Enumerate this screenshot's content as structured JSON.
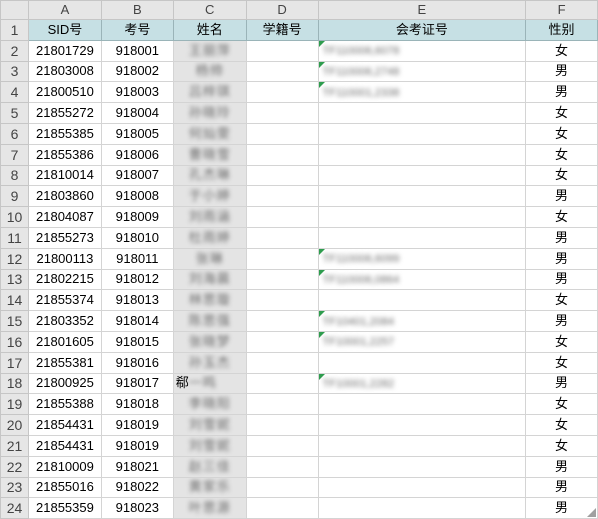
{
  "column_letters": [
    "A",
    "B",
    "C",
    "D",
    "E",
    "F"
  ],
  "headers": [
    "SID号",
    "考号",
    "姓名",
    "学籍号",
    "会考证号",
    "性别"
  ],
  "rows": [
    {
      "num": "2",
      "sid": "21801729",
      "exam": "918001",
      "name": "王丽萍",
      "xj": "",
      "hk": "TF110006,6078",
      "sex": "女"
    },
    {
      "num": "3",
      "sid": "21803008",
      "exam": "918002",
      "name": "杨帅",
      "xj": "",
      "hk": "TF110006,2748",
      "sex": "男"
    },
    {
      "num": "4",
      "sid": "21800510",
      "exam": "918003",
      "name": "吕梓琪",
      "xj": "",
      "hk": "TF110001,2338",
      "sex": "男"
    },
    {
      "num": "5",
      "sid": "21855272",
      "exam": "918004",
      "name": "孙晓玲",
      "xj": "",
      "hk": "",
      "sex": "女"
    },
    {
      "num": "6",
      "sid": "21855385",
      "exam": "918005",
      "name": "何灿雯",
      "xj": "",
      "hk": "",
      "sex": "女"
    },
    {
      "num": "7",
      "sid": "21855386",
      "exam": "918006",
      "name": "曹晓雪",
      "xj": "",
      "hk": "",
      "sex": "女"
    },
    {
      "num": "8",
      "sid": "21810014",
      "exam": "918007",
      "name": "孔杰琳",
      "xj": "",
      "hk": "",
      "sex": "女"
    },
    {
      "num": "9",
      "sid": "21803860",
      "exam": "918008",
      "name": "于小婷",
      "xj": "",
      "hk": "",
      "sex": "男"
    },
    {
      "num": "10",
      "sid": "21804087",
      "exam": "918009",
      "name": "刘雨涵",
      "xj": "",
      "hk": "",
      "sex": "女"
    },
    {
      "num": "11",
      "sid": "21855273",
      "exam": "918010",
      "name": "杜雨婷",
      "xj": "",
      "hk": "",
      "sex": "男"
    },
    {
      "num": "12",
      "sid": "21800113",
      "exam": "918011",
      "name": "张琳",
      "xj": "",
      "hk": "TF110006,6099",
      "sex": "男"
    },
    {
      "num": "13",
      "sid": "21802215",
      "exam": "918012",
      "name": "刘海晨",
      "xj": "",
      "hk": "TF110006,0864",
      "sex": "男"
    },
    {
      "num": "14",
      "sid": "21855374",
      "exam": "918013",
      "name": "林思璇",
      "xj": "",
      "hk": "",
      "sex": "女"
    },
    {
      "num": "15",
      "sid": "21803352",
      "exam": "918014",
      "name": "陈思强",
      "xj": "",
      "hk": "TF10401,2084",
      "sex": "男"
    },
    {
      "num": "16",
      "sid": "21801605",
      "exam": "918015",
      "name": "张晓梦",
      "xj": "",
      "hk": "TF10001,2257",
      "sex": "女"
    },
    {
      "num": "17",
      "sid": "21855381",
      "exam": "918016",
      "name": "孙玉杰",
      "xj": "",
      "hk": "",
      "sex": "女"
    },
    {
      "num": "18",
      "sid": "21800925",
      "exam": "918017",
      "name": "郗一鸣",
      "xj": "",
      "hk": "TF10001,2282",
      "sex": "男"
    },
    {
      "num": "19",
      "sid": "21855388",
      "exam": "918018",
      "name": "李晓阳",
      "xj": "",
      "hk": "",
      "sex": "女"
    },
    {
      "num": "20",
      "sid": "21854431",
      "exam": "918019",
      "name": "刘雪妮",
      "xj": "",
      "hk": "",
      "sex": "女"
    },
    {
      "num": "21",
      "sid": "21854431",
      "exam": "918019",
      "name": "刘雪妮",
      "xj": "",
      "hk": "",
      "sex": "女"
    },
    {
      "num": "22",
      "sid": "21810009",
      "exam": "918021",
      "name": "赵三佳",
      "xj": "",
      "hk": "",
      "sex": "男"
    },
    {
      "num": "23",
      "sid": "21855016",
      "exam": "918022",
      "name": "黄家乐",
      "xj": "",
      "hk": "",
      "sex": "男"
    },
    {
      "num": "24",
      "sid": "21855359",
      "exam": "918023",
      "name": "叶思源",
      "xj": "",
      "hk": "",
      "sex": "男"
    }
  ],
  "header_row_num": "1",
  "highlight_colors": {
    "header_fill": "#c6e0e4",
    "error_indicator": "#2e9d4e",
    "selection_text": "#217346"
  }
}
